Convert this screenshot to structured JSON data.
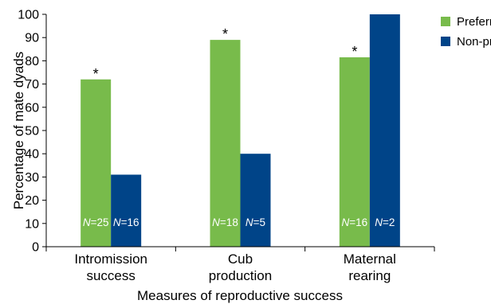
{
  "chart_data": {
    "type": "bar",
    "categories": [
      [
        "Intromission",
        "success"
      ],
      [
        "Cub",
        "production"
      ],
      [
        "Maternal",
        "rearing"
      ]
    ],
    "series": [
      {
        "name": "Preferred",
        "color": "#78bb4b",
        "values": [
          72,
          89,
          81.5
        ],
        "n_labels": [
          "25",
          "18",
          "16"
        ],
        "significance": [
          "*",
          "*",
          "*"
        ]
      },
      {
        "name": "Non-preferred",
        "color": "#004488",
        "values": [
          31,
          40,
          100
        ],
        "n_labels": [
          "16",
          "5",
          "2"
        ],
        "significance": [
          "",
          "",
          ""
        ]
      }
    ],
    "n_prefix": "N",
    "ylabel": "Percentage of mate dyads",
    "xlabel": "Measures of reproductive success",
    "ylim": [
      0,
      100
    ],
    "yticks": [
      0,
      10,
      20,
      30,
      40,
      50,
      60,
      70,
      80,
      90,
      100
    ],
    "legend_position": "right",
    "grid": false
  }
}
